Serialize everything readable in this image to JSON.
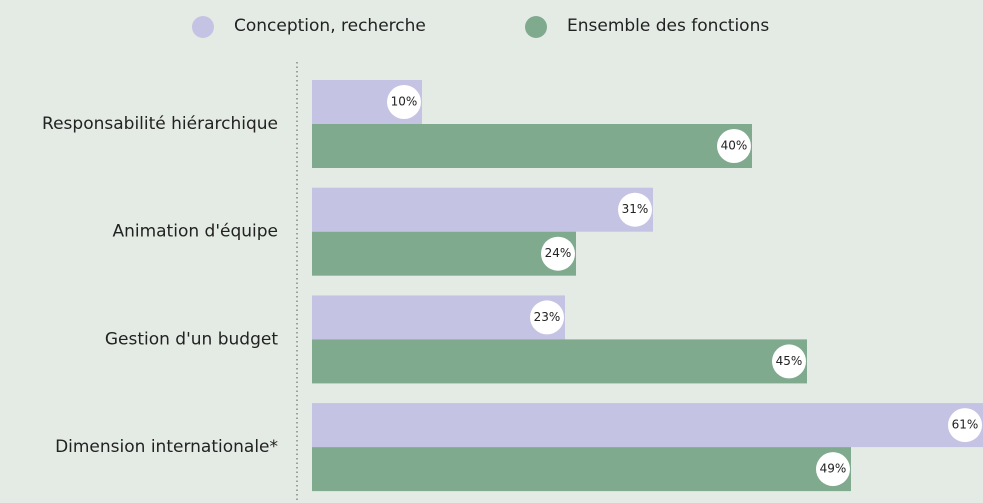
{
  "chart_data": {
    "type": "bar",
    "orientation": "horizontal",
    "categories": [
      "Responsabilité hiérarchique",
      "Animation d'équipe",
      "Gestion d'un budget",
      "Dimension internationale*"
    ],
    "series": [
      {
        "name": "Conception, recherche",
        "color": "#c5c3e3",
        "values": [
          10,
          31,
          23,
          61
        ],
        "value_labels": [
          "10%",
          "31%",
          "23%",
          "61%"
        ]
      },
      {
        "name": "Ensemble des fonctions",
        "color": "#80aa8e",
        "values": [
          40,
          24,
          45,
          49
        ],
        "value_labels": [
          "40%",
          "24%",
          "45%",
          "49%"
        ]
      }
    ],
    "legend": "top"
  }
}
